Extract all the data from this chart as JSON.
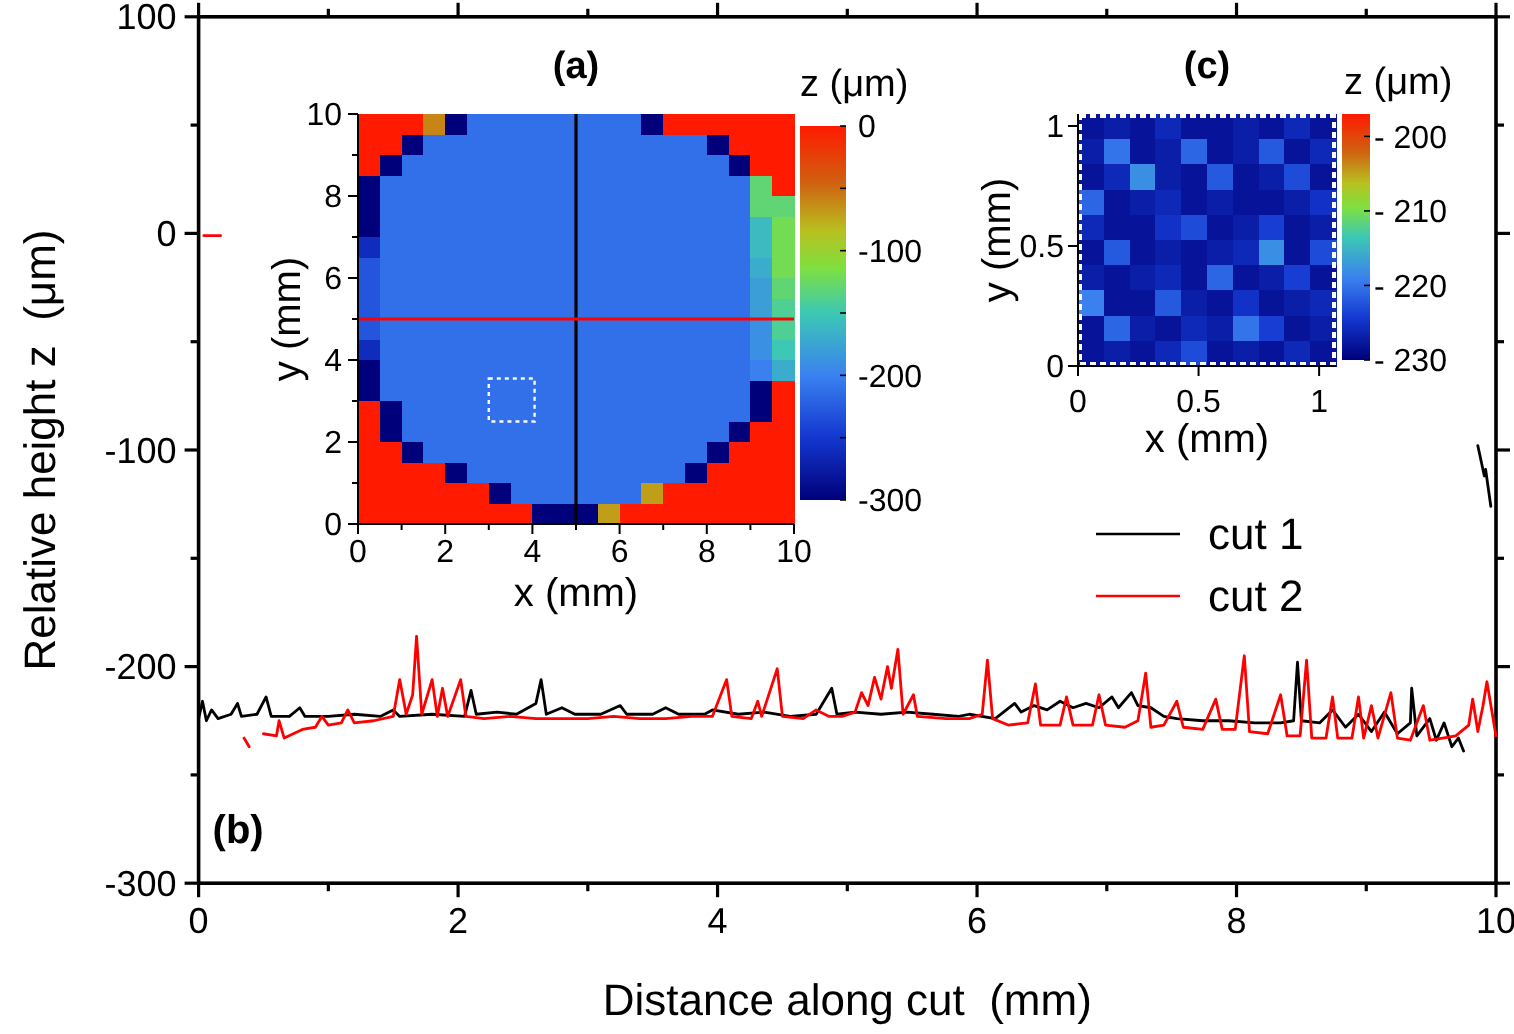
{
  "chart_data": [
    {
      "type": "heatmap",
      "title": "(a)",
      "xlabel": "x (mm)",
      "ylabel": "y (mm)",
      "clabel": "z (μm)",
      "xlim": [
        0,
        10
      ],
      "ylim": [
        0,
        10
      ],
      "xticks": [
        0,
        {
          "value": 1,
          "label": null
        },
        2,
        {
          "value": 3,
          "label": null
        },
        4,
        {
          "value": 5,
          "label": null
        },
        6,
        {
          "value": 7,
          "label": null
        },
        8,
        {
          "value": 9,
          "label": null
        },
        10
      ],
      "yticks": [
        0,
        {
          "value": 1,
          "label": null
        },
        2,
        {
          "value": 3,
          "label": null
        },
        4,
        {
          "value": 5,
          "label": null
        },
        6,
        {
          "value": 7,
          "label": null
        },
        8,
        {
          "value": 9,
          "label": null
        },
        10
      ],
      "clim": [
        -300,
        0
      ],
      "cticks": [
        -300,
        {
          "value": -250,
          "label": null
        },
        -200,
        {
          "value": -150,
          "label": null
        },
        -100,
        {
          "value": -50,
          "label": null
        },
        0
      ],
      "ref_lines": [
        {
          "axis": "x",
          "value": 5,
          "color": "#000000"
        },
        {
          "axis": "y",
          "value": 5,
          "color": "#ff0000"
        }
      ],
      "cells": [
        [
          0,
          0,
          0,
          -60,
          -300,
          -212,
          -212,
          -212,
          -212,
          -212,
          -212,
          -212,
          -212,
          -300,
          0,
          0,
          0,
          0,
          0,
          0
        ],
        [
          0,
          0,
          -300,
          -212,
          -212,
          -212,
          -212,
          -212,
          -212,
          -212,
          -212,
          -212,
          -212,
          -212,
          -212,
          -212,
          -300,
          0,
          0,
          0
        ],
        [
          0,
          -300,
          -212,
          -212,
          -212,
          -212,
          -212,
          -212,
          -212,
          -212,
          -212,
          -212,
          -212,
          -212,
          -212,
          -212,
          -212,
          -300,
          0,
          0
        ],
        [
          -300,
          -212,
          -212,
          -212,
          -212,
          -212,
          -212,
          -212,
          -212,
          -212,
          -212,
          -212,
          -212,
          -212,
          -212,
          -212,
          -212,
          -212,
          -130,
          0
        ],
        [
          -300,
          -212,
          -212,
          -212,
          -212,
          -212,
          -212,
          -212,
          -212,
          -212,
          -212,
          -212,
          -212,
          -212,
          -212,
          -212,
          -212,
          -212,
          -130,
          -130
        ],
        [
          -300,
          -212,
          -212,
          -212,
          -212,
          -212,
          -212,
          -212,
          -212,
          -212,
          -212,
          -212,
          -212,
          -212,
          -212,
          -212,
          -212,
          -212,
          -160,
          -120
        ],
        [
          -260,
          -212,
          -212,
          -212,
          -212,
          -212,
          -212,
          -212,
          -212,
          -212,
          -212,
          -212,
          -212,
          -212,
          -212,
          -212,
          -212,
          -212,
          -160,
          -120
        ],
        [
          -230,
          -212,
          -212,
          -212,
          -212,
          -212,
          -212,
          -212,
          -212,
          -212,
          -212,
          -212,
          -212,
          -212,
          -212,
          -212,
          -212,
          -212,
          -170,
          -120
        ],
        [
          -230,
          -212,
          -212,
          -212,
          -212,
          -212,
          -212,
          -212,
          -212,
          -212,
          -212,
          -212,
          -212,
          -212,
          -212,
          -212,
          -212,
          -212,
          -180,
          -130
        ],
        [
          -230,
          -212,
          -212,
          -212,
          -212,
          -212,
          -212,
          -212,
          -212,
          -212,
          -212,
          -212,
          -212,
          -212,
          -212,
          -212,
          -212,
          -212,
          -180,
          -140
        ],
        [
          -230,
          -212,
          -212,
          -212,
          -212,
          -212,
          -212,
          -212,
          -212,
          -212,
          -212,
          -212,
          -212,
          -212,
          -212,
          -212,
          -212,
          -212,
          -190,
          -140
        ],
        [
          -260,
          -212,
          -212,
          -212,
          -212,
          -212,
          -212,
          -212,
          -212,
          -212,
          -212,
          -212,
          -212,
          -212,
          -212,
          -212,
          -212,
          -212,
          -190,
          -150
        ],
        [
          -300,
          -212,
          -212,
          -212,
          -212,
          -212,
          -212,
          -212,
          -212,
          -212,
          -212,
          -212,
          -212,
          -212,
          -212,
          -212,
          -212,
          -212,
          -200,
          -170
        ],
        [
          -300,
          -212,
          -212,
          -212,
          -212,
          -212,
          -212,
          -212,
          -212,
          -212,
          -212,
          -212,
          -212,
          -212,
          -212,
          -212,
          -212,
          -212,
          -300,
          0
        ],
        [
          0,
          -300,
          -212,
          -212,
          -212,
          -212,
          -212,
          -212,
          -212,
          -212,
          -212,
          -212,
          -212,
          -212,
          -212,
          -212,
          -212,
          -212,
          -300,
          0
        ],
        [
          0,
          -300,
          -212,
          -212,
          -212,
          -212,
          -212,
          -212,
          -212,
          -212,
          -212,
          -212,
          -212,
          -212,
          -212,
          -212,
          -212,
          -300,
          0,
          0
        ],
        [
          0,
          0,
          -300,
          -212,
          -212,
          -212,
          -212,
          -212,
          -212,
          -212,
          -212,
          -212,
          -212,
          -212,
          -212,
          -212,
          -300,
          0,
          0,
          0
        ],
        [
          0,
          0,
          0,
          0,
          -300,
          -212,
          -212,
          -212,
          -212,
          -212,
          -212,
          -212,
          -212,
          -212,
          -212,
          -300,
          0,
          0,
          0,
          0
        ],
        [
          0,
          0,
          0,
          0,
          0,
          0,
          -300,
          -212,
          -212,
          -212,
          -212,
          -212,
          -212,
          -70,
          0,
          0,
          0,
          0,
          0,
          0
        ],
        [
          0,
          0,
          0,
          0,
          0,
          0,
          0,
          0,
          -300,
          -300,
          -300,
          -70,
          0,
          0,
          0,
          0,
          0,
          0,
          0,
          0
        ]
      ]
    },
    {
      "type": "line",
      "annotations": [
        "(b)"
      ],
      "xlabel": "Distance along cut  (mm)",
      "ylabel": "Relative height z  (μm)",
      "xlim": [
        0,
        10
      ],
      "ylim": [
        -300,
        100
      ],
      "xticks": [
        0,
        {
          "value": 1,
          "label": null
        },
        2,
        {
          "value": 3,
          "label": null
        },
        4,
        {
          "value": 5,
          "label": null
        },
        6,
        {
          "value": 7,
          "label": null
        },
        8,
        {
          "value": 9,
          "label": null
        },
        10
      ],
      "yticks": [
        -300,
        {
          "value": -250,
          "label": null
        },
        -200,
        {
          "value": -150,
          "label": null
        },
        -100,
        {
          "value": -50,
          "label": null
        },
        0,
        {
          "value": 50,
          "label": null
        },
        100
      ],
      "legend": "right",
      "series": [
        {
          "name": "cut 1",
          "color": "#000000",
          "x": [
            0,
            0.03,
            0.06,
            0.1,
            0.15,
            0.25,
            0.3,
            0.33,
            0.45,
            0.52,
            0.56,
            0.7,
            0.78,
            0.82,
            1,
            1.2,
            1.4,
            1.5,
            1.55,
            1.8,
            2.05,
            2.1,
            2.14,
            2.3,
            2.45,
            2.6,
            2.64,
            2.68,
            2.8,
            2.9,
            3.1,
            3.25,
            3.3,
            3.5,
            3.6,
            3.7,
            3.9,
            3.96,
            4.16,
            4.36,
            4.56,
            4.76,
            4.88,
            4.92,
            5.06,
            5.26,
            5.46,
            5.66,
            5.86,
            5.94,
            6.14,
            6.29,
            6.34,
            6.44,
            6.54,
            6.64,
            6.74,
            6.84,
            6.94,
            7.04,
            7.09,
            7.19,
            7.24,
            7.34,
            7.44,
            7.54,
            7.74,
            7.94,
            8.14,
            8.34,
            8.44,
            8.47,
            8.5,
            8.64,
            8.74,
            8.84,
            8.94,
            9.04,
            9.14,
            9.24,
            9.34,
            9.35,
            9.39,
            9.49,
            9.54,
            9.6,
            9.66,
            9.71,
            9.75,
            9.8,
            9.86,
            9.91,
            9.915,
            9.92,
            9.96
          ],
          "values": [
            -224,
            -216,
            -225,
            -220,
            -224,
            -222,
            -217,
            -223,
            -222,
            -214,
            -223,
            -223,
            -219,
            -223,
            -223,
            -222,
            -223,
            -220,
            -223,
            -222,
            -223,
            -211,
            -222,
            -221,
            -222,
            -217,
            -206,
            -222,
            -219,
            -222,
            -222,
            -218,
            -222,
            -222,
            -219,
            -222,
            -222,
            -220,
            -222,
            -221,
            -223,
            -222,
            -210,
            -222,
            -221,
            -222,
            -221,
            -222,
            -223,
            -222,
            -224,
            -217,
            -221,
            -218,
            -220,
            -216,
            -219,
            -217,
            -219,
            -214,
            -219,
            -212,
            -218,
            -219,
            -223,
            -224,
            -225,
            -225,
            -226,
            -226,
            -225,
            -198,
            -225,
            -226,
            -220,
            -228,
            -222,
            -230,
            -221,
            -231,
            -226,
            -210,
            -232,
            -224,
            -234,
            -226,
            -237,
            -233,
            -239,
            null,
            -98,
            -112,
            null,
            -109,
            -126
          ]
        },
        {
          "name": "cut 2",
          "color": "#ff0000",
          "x": [
            0.04,
            0.17,
            0.28,
            0.35,
            0.39,
            0.45,
            0.5,
            0.6,
            0.62,
            0.66,
            0.8,
            0.9,
            0.95,
            1,
            1.1,
            1.15,
            1.2,
            1.35,
            1.5,
            1.55,
            1.6,
            1.65,
            1.68,
            1.72,
            1.8,
            1.84,
            1.88,
            1.92,
            2.02,
            2.06,
            2.2,
            2.4,
            2.6,
            2.8,
            3,
            3.2,
            3.4,
            3.6,
            3.8,
            3.96,
            4.07,
            4.11,
            4.26,
            4.31,
            4.34,
            4.46,
            4.5,
            4.66,
            4.76,
            4.86,
            4.96,
            5.06,
            5.11,
            5.16,
            5.21,
            5.26,
            5.31,
            5.34,
            5.39,
            5.43,
            5.51,
            5.54,
            5.76,
            5.94,
            6.04,
            6.08,
            6.12,
            6.24,
            6.39,
            6.45,
            6.49,
            6.64,
            6.69,
            6.74,
            6.89,
            6.94,
            6.99,
            7.14,
            7.24,
            7.3,
            7.34,
            7.44,
            7.54,
            7.59,
            7.74,
            7.84,
            7.89,
            7.99,
            8.06,
            8.1,
            8.24,
            8.34,
            8.39,
            8.49,
            8.54,
            8.58,
            8.69,
            8.74,
            8.78,
            8.89,
            8.94,
            8.98,
            9.04,
            9.09,
            9.19,
            9.24,
            9.34,
            9.44,
            9.49,
            9.59,
            9.69,
            9.79,
            9.82,
            9.86,
            9.9,
            9.93,
            10
          ],
          "values": [
            -1,
            -1,
            null,
            -233,
            -237,
            null,
            -231,
            -232,
            -225,
            -233,
            -229,
            -228,
            -223,
            -227,
            -226,
            -220,
            -226,
            -225,
            -223,
            -206,
            -222,
            -213,
            -186,
            -222,
            -206,
            -223,
            -210,
            -223,
            -206,
            -223,
            -224,
            -223,
            -224,
            -224,
            -224,
            -223,
            -224,
            -224,
            -223,
            -223,
            -206,
            -223,
            -224,
            -216,
            -223,
            -201,
            -223,
            -224,
            -220,
            -223,
            -223,
            -221,
            -212,
            -218,
            -205,
            -215,
            -200,
            -210,
            -192,
            -222,
            -213,
            -223,
            -224,
            -224,
            -222,
            -197,
            -224,
            -227,
            -226,
            -208,
            -227,
            -227,
            -214,
            -227,
            -227,
            -213,
            -227,
            -228,
            -225,
            -203,
            -228,
            -227,
            -216,
            -228,
            -229,
            -215,
            -229,
            -229,
            -195,
            -230,
            -231,
            -213,
            -232,
            -232,
            -197,
            -233,
            -233,
            -214,
            -233,
            -233,
            -214,
            -233,
            -218,
            -233,
            -212,
            -233,
            -234,
            -218,
            -234,
            -233,
            -232,
            -227,
            -215,
            -230,
            -218,
            -207,
            -232
          ]
        }
      ]
    },
    {
      "type": "heatmap",
      "title": "(c)",
      "xlabel": "x (mm)",
      "ylabel": "y (mm)",
      "clabel": "z (μm)",
      "xlim": [
        0,
        1.07
      ],
      "ylim": [
        0,
        1.05
      ],
      "xticks": [
        0,
        0.5,
        1
      ],
      "yticks": [
        0,
        0.5,
        1
      ],
      "clim": [
        -230,
        -197
      ],
      "cticks": [
        {
          "value": -230,
          "label": "- 230"
        },
        {
          "value": -220,
          "label": "- 220"
        },
        {
          "value": -210,
          "label": "- 210"
        },
        {
          "value": -200,
          "label": "- 200"
        }
      ],
      "cells": [
        [
          -228,
          -227,
          -228,
          -226,
          -228,
          -228,
          -227,
          -228,
          -226,
          -228
        ],
        [
          -227,
          -220,
          -228,
          -227,
          -221,
          -228,
          -227,
          -222,
          -228,
          -226
        ],
        [
          -228,
          -226,
          -218,
          -227,
          -228,
          -222,
          -228,
          -227,
          -223,
          -228
        ],
        [
          -221,
          -228,
          -227,
          -226,
          -228,
          -227,
          -228,
          -228,
          -227,
          -225
        ],
        [
          -226,
          -228,
          -228,
          -225,
          -223,
          -228,
          -227,
          -224,
          -228,
          -227
        ],
        [
          -228,
          -222,
          -228,
          -227,
          -228,
          -227,
          -226,
          -218,
          -228,
          -223
        ],
        [
          -227,
          -228,
          -227,
          -226,
          -228,
          -221,
          -228,
          -227,
          -224,
          -228
        ],
        [
          -219,
          -228,
          -228,
          -222,
          -227,
          -228,
          -225,
          -228,
          -227,
          -226
        ],
        [
          -228,
          -221,
          -227,
          -228,
          -226,
          -227,
          -220,
          -224,
          -228,
          -227
        ],
        [
          -228,
          -227,
          -228,
          -226,
          -223,
          -228,
          -227,
          -228,
          -226,
          -228
        ]
      ]
    }
  ]
}
